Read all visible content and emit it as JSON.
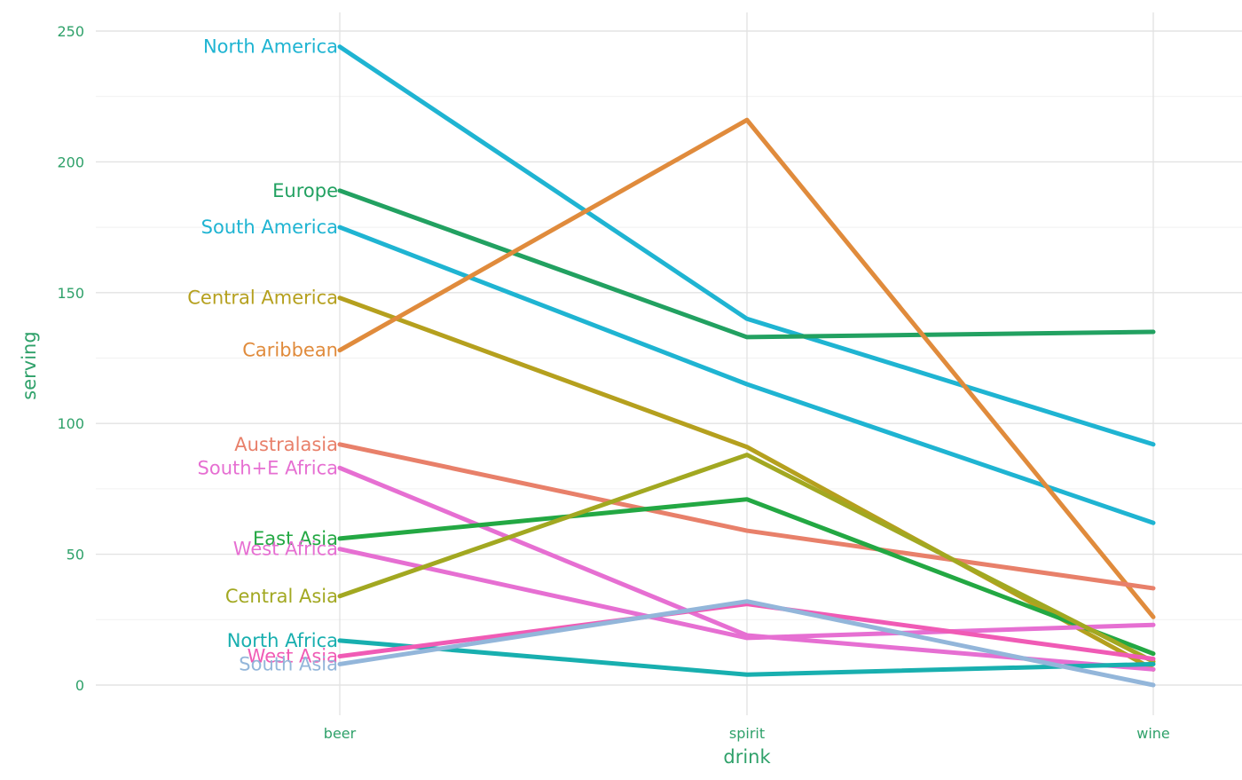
{
  "chart_data": {
    "type": "line",
    "title": "",
    "xlabel": "drink",
    "ylabel": "serving",
    "categories": [
      "beer",
      "spirit",
      "wine"
    ],
    "yticks": [
      0,
      50,
      100,
      150,
      200,
      250
    ],
    "ylim": [
      -10,
      258
    ],
    "grid": true,
    "legend": "none",
    "series": [
      {
        "name": "North America",
        "color": "#1FB4D2",
        "values": [
          244,
          140,
          92
        ]
      },
      {
        "name": "Europe",
        "color": "#22A161",
        "values": [
          189,
          133,
          135
        ]
      },
      {
        "name": "South America",
        "color": "#1FB4D2",
        "values": [
          175,
          115,
          62
        ]
      },
      {
        "name": "Central America",
        "color": "#B5A01E",
        "values": [
          148,
          91,
          6
        ]
      },
      {
        "name": "Caribbean",
        "color": "#E08B3C",
        "values": [
          128,
          216,
          26
        ]
      },
      {
        "name": "Australasia",
        "color": "#E8806A",
        "values": [
          92,
          59,
          37
        ]
      },
      {
        "name": "South+E Africa",
        "color": "#E66FD2",
        "values": [
          83,
          19,
          6
        ]
      },
      {
        "name": "East Asia",
        "color": "#23A843",
        "values": [
          56,
          71,
          12
        ]
      },
      {
        "name": "West Africa",
        "color": "#E66FD2",
        "values": [
          52,
          18,
          23
        ]
      },
      {
        "name": "Central Asia",
        "color": "#A2A821",
        "values": [
          34,
          88,
          9
        ]
      },
      {
        "name": "North Africa",
        "color": "#18AFAF",
        "values": [
          17,
          4,
          8
        ]
      },
      {
        "name": "West Asia",
        "color": "#F05BB5",
        "values": [
          11,
          31,
          10
        ]
      },
      {
        "name": "South Asia",
        "color": "#93B6DA",
        "values": [
          8,
          32,
          0
        ]
      }
    ]
  },
  "colors": {
    "axis_text": "#2FA16A",
    "grid_major": "#E3E3E3",
    "grid_minor": "#F1F1F1"
  }
}
